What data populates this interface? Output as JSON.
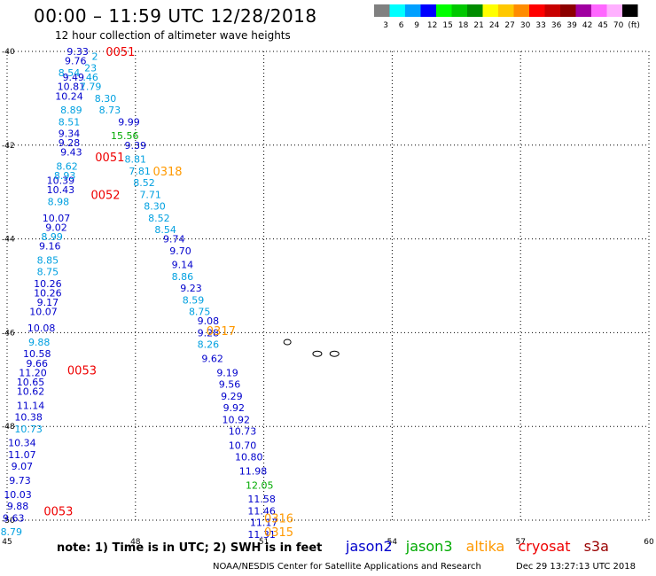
{
  "header": {
    "title": "00:00 – 11:59 UTC 12/28/2018",
    "subtitle": "12 hour collection of altimeter wave heights"
  },
  "colorbar": {
    "labels": [
      "3",
      "6",
      "9",
      "12",
      "15",
      "18",
      "21",
      "24",
      "27",
      "30",
      "33",
      "36",
      "39",
      "42",
      "45",
      "70",
      "(ft)"
    ],
    "colors": [
      "#808080",
      "#00ffff",
      "#00a0ff",
      "#0000ff",
      "#00ff00",
      "#00c800",
      "#008c00",
      "#ffff00",
      "#ffc800",
      "#ff8c00",
      "#ff0000",
      "#c80000",
      "#8c0000",
      "#a000a0",
      "#ff66ff",
      "#ffb0ff",
      "#000000"
    ]
  },
  "footer": {
    "note": "note: 1) Time is in UTC; 2) SWH is in feet",
    "credit": "NOAA/NESDIS Center for Satellite Applications and Research",
    "timestamp": "Dec 29 13:27:13 UTC 2018"
  },
  "legend": [
    {
      "name": "jason2",
      "color": "#0000cc"
    },
    {
      "name": "jason3",
      "color": "#00aa00"
    },
    {
      "name": "altika",
      "color": "#ff9900"
    },
    {
      "name": "cryosat",
      "color": "#ee0000"
    },
    {
      "name": "s3a",
      "color": "#990000"
    }
  ],
  "chart_data": {
    "type": "scatter",
    "xlim": [
      45,
      60
    ],
    "ylim": [
      -50,
      -40
    ],
    "xticks": [
      "45",
      "48",
      "51",
      "54",
      "57",
      "60"
    ],
    "yticks": [
      "-40",
      "-42",
      "-44",
      "-46",
      "-48",
      "-50"
    ],
    "grid": true,
    "times": [
      {
        "x": 47.65,
        "y": -40.0,
        "label": "0051",
        "color": "#ee0000"
      },
      {
        "x": 47.4,
        "y": -42.25,
        "label": "0051",
        "color": "#ee0000"
      },
      {
        "x": 47.3,
        "y": -43.05,
        "label": "0052",
        "color": "#ee0000"
      },
      {
        "x": 46.75,
        "y": -46.8,
        "label": "0053",
        "color": "#ee0000"
      },
      {
        "x": 46.2,
        "y": -49.8,
        "label": "0053",
        "color": "#ee0000"
      },
      {
        "x": 48.75,
        "y": -42.55,
        "label": "0318",
        "color": "#ff9900"
      },
      {
        "x": 50.0,
        "y": -45.95,
        "label": "0317",
        "color": "#ff9900"
      },
      {
        "x": 51.35,
        "y": -49.95,
        "label": "0316",
        "color": "#ff9900"
      },
      {
        "x": 51.35,
        "y": -50.25,
        "label": "0315",
        "color": "#ff9900"
      }
    ],
    "series": [
      {
        "name": "jason2",
        "color": "#0000cc",
        "points": [
          {
            "x": 46.65,
            "y": -40.0,
            "v": "9.33"
          },
          {
            "x": 46.6,
            "y": -40.2,
            "v": "9.76"
          },
          {
            "x": 46.55,
            "y": -40.55,
            "v": "9.49"
          },
          {
            "x": 46.5,
            "y": -40.75,
            "v": "10.81"
          },
          {
            "x": 46.45,
            "y": -40.95,
            "v": "10.24"
          },
          {
            "x": 46.45,
            "y": -41.75,
            "v": "9.34"
          },
          {
            "x": 46.45,
            "y": -41.95,
            "v": "9.28"
          },
          {
            "x": 46.5,
            "y": -42.15,
            "v": "9.43"
          },
          {
            "x": 46.25,
            "y": -42.75,
            "v": "10.39"
          },
          {
            "x": 46.25,
            "y": -42.95,
            "v": "10.43"
          },
          {
            "x": 46.15,
            "y": -43.55,
            "v": "10.07"
          },
          {
            "x": 46.15,
            "y": -43.75,
            "v": "9.02"
          },
          {
            "x": 46.0,
            "y": -44.15,
            "v": "9.16"
          },
          {
            "x": 45.95,
            "y": -44.95,
            "v": "10.26"
          },
          {
            "x": 45.95,
            "y": -45.15,
            "v": "10.26"
          },
          {
            "x": 45.95,
            "y": -45.35,
            "v": "9.17"
          },
          {
            "x": 45.85,
            "y": -45.55,
            "v": "10.07"
          },
          {
            "x": 45.8,
            "y": -45.9,
            "v": "10.08"
          },
          {
            "x": 45.7,
            "y": -46.45,
            "v": "10.58"
          },
          {
            "x": 45.7,
            "y": -46.65,
            "v": "9.66"
          },
          {
            "x": 45.6,
            "y": -46.85,
            "v": "11.20"
          },
          {
            "x": 45.55,
            "y": -47.05,
            "v": "10.65"
          },
          {
            "x": 45.55,
            "y": -47.25,
            "v": "10.62"
          },
          {
            "x": 45.55,
            "y": -47.55,
            "v": "11.14"
          },
          {
            "x": 45.5,
            "y": -47.8,
            "v": "10.38"
          },
          {
            "x": 45.35,
            "y": -48.35,
            "v": "10.34"
          },
          {
            "x": 45.35,
            "y": -48.6,
            "v": "11.07"
          },
          {
            "x": 45.35,
            "y": -48.85,
            "v": "9.07"
          },
          {
            "x": 45.3,
            "y": -49.15,
            "v": "9.73"
          },
          {
            "x": 45.25,
            "y": -49.45,
            "v": "10.03"
          },
          {
            "x": 45.25,
            "y": -49.7,
            "v": "9.88"
          },
          {
            "x": 45.15,
            "y": -49.95,
            "v": "9.63"
          },
          {
            "x": 47.85,
            "y": -41.5,
            "v": "9.99"
          },
          {
            "x": 48.0,
            "y": -42.0,
            "v": "9.39"
          },
          {
            "x": 48.9,
            "y": -44.0,
            "v": "9.74"
          },
          {
            "x": 49.05,
            "y": -44.25,
            "v": "9.70"
          },
          {
            "x": 49.1,
            "y": -44.55,
            "v": "9.14"
          },
          {
            "x": 49.3,
            "y": -45.05,
            "v": "9.23"
          },
          {
            "x": 49.7,
            "y": -45.75,
            "v": "9.08"
          },
          {
            "x": 49.7,
            "y": -46.0,
            "v": "9.28"
          },
          {
            "x": 49.8,
            "y": -46.55,
            "v": "9.62"
          },
          {
            "x": 50.15,
            "y": -46.85,
            "v": "9.19"
          },
          {
            "x": 50.2,
            "y": -47.1,
            "v": "9.56"
          },
          {
            "x": 50.25,
            "y": -47.35,
            "v": "9.29"
          },
          {
            "x": 50.3,
            "y": -47.6,
            "v": "9.92"
          },
          {
            "x": 50.35,
            "y": -47.85,
            "v": "10.92"
          },
          {
            "x": 50.5,
            "y": -48.1,
            "v": "10.73"
          },
          {
            "x": 50.5,
            "y": -48.4,
            "v": "10.70"
          },
          {
            "x": 50.65,
            "y": -48.65,
            "v": "10.80"
          },
          {
            "x": 50.75,
            "y": -48.95,
            "v": "11.98"
          },
          {
            "x": 50.95,
            "y": -49.55,
            "v": "11.58"
          },
          {
            "x": 50.95,
            "y": -49.8,
            "v": "11.46"
          },
          {
            "x": 51.0,
            "y": -50.05,
            "v": "11.17"
          },
          {
            "x": 50.95,
            "y": -50.3,
            "v": "11.31"
          }
        ]
      },
      {
        "name": "jason3",
        "color": "#00aa00",
        "points": [
          {
            "x": 47.75,
            "y": -41.8,
            "v": "15.56"
          },
          {
            "x": 50.9,
            "y": -49.25,
            "v": "12.05"
          }
        ]
      },
      {
        "name": "cyan",
        "color": "#00a0e0",
        "points": [
          {
            "x": 47.05,
            "y": -40.1,
            "v": "2"
          },
          {
            "x": 46.95,
            "y": -40.35,
            "v": "23"
          },
          {
            "x": 46.45,
            "y": -40.45,
            "v": "8.54"
          },
          {
            "x": 46.95,
            "y": -40.55,
            "v": ".46"
          },
          {
            "x": 46.95,
            "y": -40.75,
            "v": "7.79"
          },
          {
            "x": 47.3,
            "y": -41.0,
            "v": "8.30"
          },
          {
            "x": 47.4,
            "y": -41.25,
            "v": "8.73"
          },
          {
            "x": 46.5,
            "y": -41.25,
            "v": "8.89"
          },
          {
            "x": 46.45,
            "y": -41.5,
            "v": "8.51"
          },
          {
            "x": 46.4,
            "y": -42.45,
            "v": "8.62"
          },
          {
            "x": 46.35,
            "y": -42.65,
            "v": "8.93"
          },
          {
            "x": 46.2,
            "y": -43.2,
            "v": "8.98"
          },
          {
            "x": 46.05,
            "y": -43.95,
            "v": "8.99"
          },
          {
            "x": 45.95,
            "y": -44.45,
            "v": "8.85"
          },
          {
            "x": 45.95,
            "y": -44.7,
            "v": "8.75"
          },
          {
            "x": 45.75,
            "y": -46.2,
            "v": "9.88"
          },
          {
            "x": 45.5,
            "y": -48.05,
            "v": "10.73"
          },
          {
            "x": 45.1,
            "y": -50.25,
            "v": "8.79"
          },
          {
            "x": 48.0,
            "y": -42.3,
            "v": "8.81"
          },
          {
            "x": 48.1,
            "y": -42.55,
            "v": "7.81"
          },
          {
            "x": 48.2,
            "y": -42.8,
            "v": "8.52"
          },
          {
            "x": 48.35,
            "y": -43.05,
            "v": "7.71"
          },
          {
            "x": 48.45,
            "y": -43.3,
            "v": "8.30"
          },
          {
            "x": 48.55,
            "y": -43.55,
            "v": "8.52"
          },
          {
            "x": 48.7,
            "y": -43.8,
            "v": "8.54"
          },
          {
            "x": 49.1,
            "y": -44.8,
            "v": "8.86"
          },
          {
            "x": 49.35,
            "y": -45.3,
            "v": "8.59"
          },
          {
            "x": 49.5,
            "y": -45.55,
            "v": "8.75"
          },
          {
            "x": 49.7,
            "y": -46.25,
            "v": "8.26"
          }
        ]
      }
    ]
  }
}
